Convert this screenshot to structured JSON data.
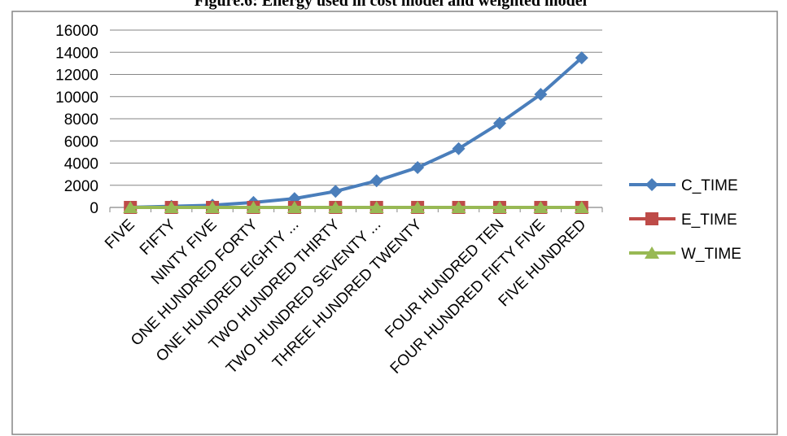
{
  "chart_data": {
    "type": "line",
    "title": "Figure.6: Energy used in cost model and weighted model",
    "xlabel": "",
    "ylabel": "",
    "categories": [
      "FIVE",
      "FIFTY",
      "NINTY FIVE",
      "ONE HUNDRED FORTY",
      "ONE HUNDRED EIGHTY ...",
      "TWO HUNDRED THIRTY",
      "TWO HUNDRED SEVENTY ...",
      "THREE HUNDRED TWENTY",
      "",
      "FOUR HUNDRED TEN",
      "FOUR HUNDRED FIFTY FIVE",
      "FIVE HUNDRED"
    ],
    "ylim": [
      0,
      16000
    ],
    "yticks": [
      0,
      2000,
      4000,
      6000,
      8000,
      10000,
      12000,
      14000,
      16000
    ],
    "grid": true,
    "legend_position": "right",
    "series": [
      {
        "name": "C_TIME",
        "color": "#4A7EBB",
        "marker": "diamond",
        "values": [
          5,
          100,
          200,
          450,
          800,
          1450,
          2400,
          3600,
          5300,
          7600,
          10200,
          13500
        ]
      },
      {
        "name": "E_TIME",
        "color": "#BE4B48",
        "marker": "square",
        "values": [
          1,
          1,
          1,
          1,
          1,
          1,
          1,
          1,
          1,
          1,
          1,
          1
        ]
      },
      {
        "name": "W_TIME",
        "color": "#98B954",
        "marker": "triangle",
        "values": [
          1,
          1,
          1,
          1,
          1,
          1,
          1,
          1,
          1,
          1,
          1,
          1
        ]
      }
    ]
  }
}
